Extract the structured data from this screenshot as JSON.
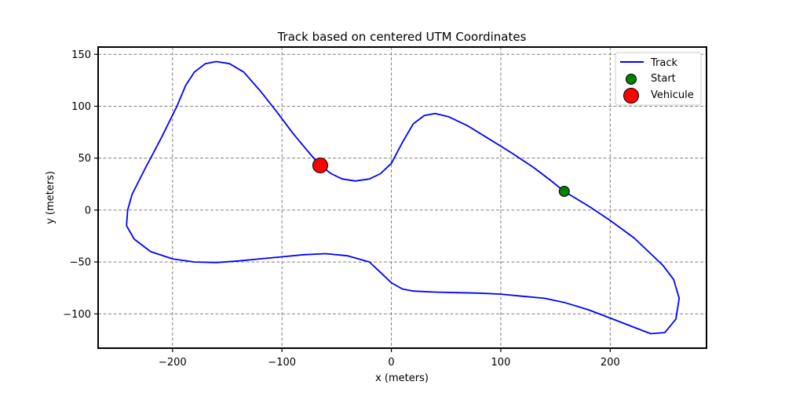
{
  "chart_data": {
    "type": "line",
    "title": "Track based on centered UTM Coordinates",
    "xlabel": "x (meters)",
    "ylabel": "y (meters)",
    "xlim": [
      -268,
      288
    ],
    "ylim": [
      -133,
      157
    ],
    "xticks": [
      -200,
      -100,
      0,
      100,
      200
    ],
    "yticks": [
      -100,
      -50,
      0,
      50,
      100,
      150
    ],
    "xtick_labels": [
      "−200",
      "−100",
      "0",
      "100",
      "200"
    ],
    "ytick_labels": [
      "−100",
      "−50",
      "0",
      "50",
      "100",
      "150"
    ],
    "grid": true,
    "legend": {
      "position": "top-right",
      "entries": [
        "Track",
        "Start",
        "Vehicule"
      ]
    },
    "series": [
      {
        "name": "Track",
        "type": "line",
        "color": "#0000ff",
        "points": [
          [
            158,
            18
          ],
          [
            180,
            4
          ],
          [
            200,
            -10
          ],
          [
            222,
            -27
          ],
          [
            235,
            -40
          ],
          [
            248,
            -53
          ],
          [
            258,
            -67
          ],
          [
            263,
            -85
          ],
          [
            260,
            -105
          ],
          [
            250,
            -118
          ],
          [
            237,
            -119
          ],
          [
            222,
            -113
          ],
          [
            200,
            -104
          ],
          [
            180,
            -96
          ],
          [
            158,
            -89
          ],
          [
            140,
            -85
          ],
          [
            120,
            -83
          ],
          [
            100,
            -81
          ],
          [
            80,
            -80
          ],
          [
            60,
            -79.5
          ],
          [
            40,
            -79
          ],
          [
            20,
            -78
          ],
          [
            10,
            -76
          ],
          [
            0,
            -70
          ],
          [
            -10,
            -60
          ],
          [
            -20,
            -50
          ],
          [
            -40,
            -44
          ],
          [
            -60,
            -42
          ],
          [
            -80,
            -43
          ],
          [
            -100,
            -45
          ],
          [
            -120,
            -47
          ],
          [
            -140,
            -49
          ],
          [
            -160,
            -50.5
          ],
          [
            -180,
            -50
          ],
          [
            -200,
            -47
          ],
          [
            -220,
            -40
          ],
          [
            -235,
            -28
          ],
          [
            -242,
            -15
          ],
          [
            -241,
            0
          ],
          [
            -237,
            15
          ],
          [
            -225,
            40
          ],
          [
            -210,
            70
          ],
          [
            -196,
            100
          ],
          [
            -188,
            120
          ],
          [
            -180,
            133
          ],
          [
            -170,
            141
          ],
          [
            -160,
            143
          ],
          [
            -148,
            141
          ],
          [
            -135,
            133
          ],
          [
            -120,
            115
          ],
          [
            -105,
            95
          ],
          [
            -90,
            74
          ],
          [
            -75,
            55
          ],
          [
            -65,
            43
          ],
          [
            -55,
            35
          ],
          [
            -45,
            30
          ],
          [
            -33,
            28
          ],
          [
            -20,
            30
          ],
          [
            -10,
            35
          ],
          [
            0,
            45
          ],
          [
            10,
            65
          ],
          [
            20,
            83
          ],
          [
            30,
            91
          ],
          [
            40,
            93
          ],
          [
            52,
            90
          ],
          [
            70,
            81
          ],
          [
            90,
            68
          ],
          [
            110,
            55
          ],
          [
            130,
            41
          ],
          [
            145,
            29
          ],
          [
            158,
            18
          ]
        ]
      },
      {
        "name": "Start",
        "type": "scatter",
        "color": "#008000",
        "points": [
          [
            158,
            18
          ]
        ]
      },
      {
        "name": "Vehicule",
        "type": "scatter",
        "color": "#ff0000",
        "points": [
          [
            -65,
            43
          ]
        ]
      }
    ]
  }
}
